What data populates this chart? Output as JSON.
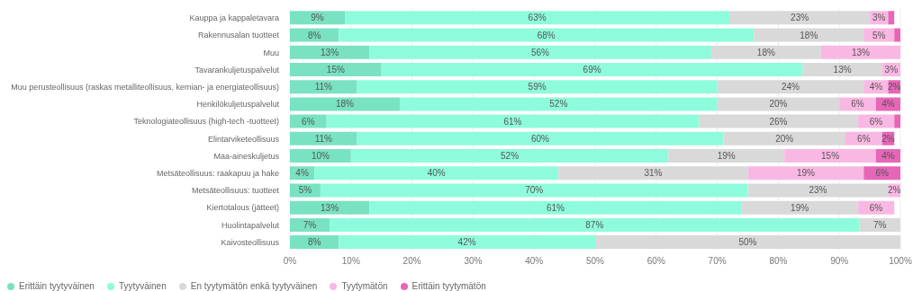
{
  "chart_data": {
    "type": "bar",
    "orientation": "horizontal",
    "stacked": true,
    "categories": [
      "Kauppa ja kappaletavara",
      "Rakennusalan tuotteet",
      "Muu",
      "Tavarankuljetuspalvelut",
      "Muu perusteollisuus (raskas metalliteollisuus, kemian- ja energiateollisuus)",
      "Henkilökuljetuspalvelut",
      "Teknologiateollisuus (high-tech -tuotteet)",
      "Elintarviketeollisuus",
      "Maa-aineskuljetus",
      "Metsäteollisuus: raakapuu ja hake",
      "Metsäteollisuus: tuotteet",
      "Kiertotalous (jätteet)",
      "Huolintapalvelut",
      "Kaivosteollisuus"
    ],
    "series": [
      {
        "name": "Erittäin tyytyväinen",
        "color": "#79e2c2",
        "values": [
          9,
          8,
          13,
          15,
          11,
          18,
          6,
          11,
          10,
          4,
          5,
          13,
          6.5,
          8
        ],
        "value_labels": [
          "9%",
          "8%",
          "13%",
          "15%",
          "11%",
          "18%",
          "6%",
          "11%",
          "10%",
          "4%",
          "5%",
          "13%",
          "7%",
          "8%"
        ]
      },
      {
        "name": "Tyytyväinen",
        "color": "#8efcdc",
        "values": [
          63,
          68,
          56,
          69,
          59,
          52,
          61,
          60,
          52,
          40,
          70,
          61,
          86.8,
          42
        ],
        "value_labels": [
          "63%",
          "68%",
          "56%",
          "69%",
          "59%",
          "52%",
          "61%",
          "60%",
          "52%",
          "40%",
          "70%",
          "61%",
          "87%",
          "42%"
        ]
      },
      {
        "name": "En tyytymätön enkä tyytyväinen",
        "color": "#d9d9d9",
        "values": [
          23,
          18,
          18,
          13,
          24,
          20,
          26,
          20,
          19,
          31,
          23,
          19,
          6.7,
          50
        ],
        "value_labels": [
          "23%",
          "18%",
          "18%",
          "13%",
          "24%",
          "20%",
          "26%",
          "20%",
          "19%",
          "31%",
          "23%",
          "19%",
          "7%",
          "50%"
        ]
      },
      {
        "name": "Tyytymätön",
        "color": "#f9b8e3",
        "values": [
          3,
          5,
          13,
          3,
          4,
          6,
          6,
          6,
          15,
          19,
          2,
          6,
          0,
          0
        ],
        "value_labels": [
          "3%",
          "5%",
          "13%",
          "3%",
          "4%",
          "6%",
          "6%",
          "6%",
          "15%",
          "19%",
          "2%",
          "6%",
          null,
          null
        ]
      },
      {
        "name": "Erittäin tyytymätön",
        "color": "#e766b8",
        "values": [
          1,
          1,
          0,
          0,
          2,
          4,
          1,
          2,
          4,
          6,
          0,
          0,
          0,
          0
        ],
        "value_labels": [
          null,
          null,
          null,
          null,
          "2%",
          "4%",
          null,
          "2%",
          "4%",
          "6%",
          null,
          null,
          null,
          null
        ]
      }
    ],
    "xlim": [
      0,
      100
    ],
    "xticks": [
      {
        "value": 0,
        "label": "0%"
      },
      {
        "value": 10,
        "label": "10%"
      },
      {
        "value": 20,
        "label": "20%"
      },
      {
        "value": 30,
        "label": "30%"
      },
      {
        "value": 40,
        "label": "40%"
      },
      {
        "value": 50,
        "label": "50%"
      },
      {
        "value": 60,
        "label": "60%"
      },
      {
        "value": 70,
        "label": "70%"
      },
      {
        "value": 80,
        "label": "80%"
      },
      {
        "value": 90,
        "label": "90%"
      },
      {
        "value": 100,
        "label": "100%"
      }
    ],
    "grid": "x",
    "legend": "bottom left"
  }
}
